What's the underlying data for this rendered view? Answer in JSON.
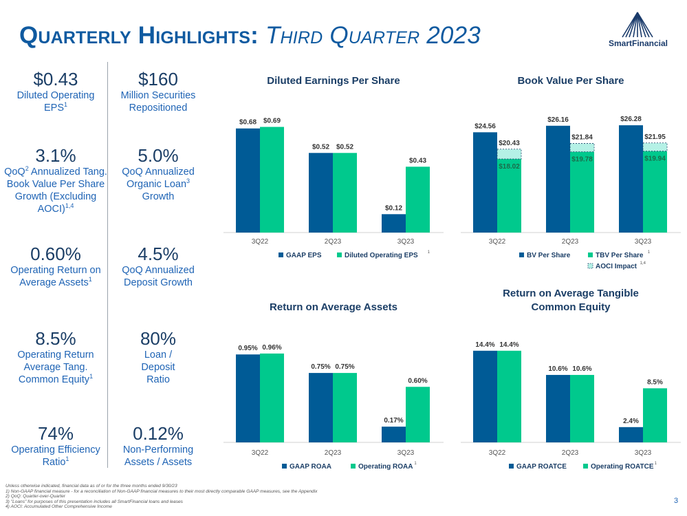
{
  "title": {
    "main": "Quarterly Highlights:",
    "sub": "Third Quarter 2023"
  },
  "logo": {
    "name": "SmartFinancial"
  },
  "kpis_left": [
    {
      "value": "$0.43",
      "label": "Diluted Operating EPS",
      "sup": "1"
    },
    {
      "value": "3.1%",
      "label_parts": [
        "QoQ",
        "2",
        " Annualized Tang. Book Value Per Share Growth (Excluding AOCI)",
        "1,4"
      ]
    },
    {
      "value": "0.60%",
      "label": "Operating Return on Average Assets",
      "sup": "1"
    },
    {
      "value": "8.5%",
      "label": "Operating Return Average Tang. Common Equity",
      "sup": "1"
    },
    {
      "value": "74%",
      "label": "Operating Efficiency Ratio",
      "sup": "1"
    }
  ],
  "kpis_right": [
    {
      "value": "$160",
      "label": "Million Securities Repositioned"
    },
    {
      "value": "5.0%",
      "label": "QoQ Annualized Organic Loan",
      "sup": "3",
      "label_after": " Growth"
    },
    {
      "value": "4.5%",
      "label": "QoQ Annualized Deposit Growth"
    },
    {
      "value": "80%",
      "label": "Loan / Deposit Ratio"
    },
    {
      "value": "0.12%",
      "label": "Non-Performing Assets / Assets"
    }
  ],
  "colors": {
    "navy": "#005b96",
    "green": "#00c98d",
    "aoci": "#b5f1e6",
    "title": "#0f5aa0",
    "kpi_label": "#1f64b5",
    "kpi_value": "#1b3e66"
  },
  "chart_data": [
    {
      "id": "eps",
      "type": "bar",
      "title": "Diluted Earnings Per Share",
      "categories": [
        "3Q22",
        "2Q23",
        "3Q23"
      ],
      "series": [
        {
          "name": "GAAP EPS",
          "values": [
            0.68,
            0.52,
            0.12
          ],
          "labels": [
            "$0.68",
            "$0.52",
            "$0.12"
          ]
        },
        {
          "name": "Diluted Operating EPS",
          "sup": "1",
          "values": [
            0.69,
            0.52,
            0.43
          ],
          "labels": [
            "$0.69",
            "$0.52",
            "$0.43"
          ]
        }
      ],
      "ylim": [
        0,
        0.8
      ]
    },
    {
      "id": "bvps",
      "type": "bar",
      "title": "Book Value Per Share",
      "categories": [
        "3Q22",
        "2Q23",
        "3Q23"
      ],
      "series": [
        {
          "name": "BV Per Share",
          "values": [
            24.56,
            26.16,
            26.28
          ],
          "labels": [
            "$24.56",
            "$26.16",
            "$26.28"
          ]
        },
        {
          "name": "TBV Per Share",
          "sup": "1",
          "values": [
            18.02,
            19.78,
            19.94
          ],
          "labels": [
            "$18.02",
            "$19.78",
            "$19.94"
          ]
        },
        {
          "name": "AOCI Impact",
          "sup": "1,4",
          "stacked_on": "TBV Per Share",
          "values": [
            2.41,
            2.06,
            2.01
          ],
          "labels": [
            "$20.43",
            "$21.84",
            "$21.95"
          ]
        }
      ],
      "ylim": [
        0,
        30
      ]
    },
    {
      "id": "roaa",
      "type": "bar",
      "title": "Return on Average Assets",
      "categories": [
        "3Q22",
        "2Q23",
        "3Q23"
      ],
      "series": [
        {
          "name": "GAAP ROAA",
          "values": [
            0.95,
            0.75,
            0.17
          ],
          "labels": [
            "0.95%",
            "0.75%",
            "0.17%"
          ]
        },
        {
          "name": "Operating ROAA",
          "sup": "1",
          "values": [
            0.96,
            0.75,
            0.6
          ],
          "labels": [
            "0.96%",
            "0.75%",
            "0.60%"
          ]
        }
      ],
      "ylim": [
        0,
        1.1
      ]
    },
    {
      "id": "roatce",
      "type": "bar",
      "title": "Return on Average Tangible Common Equity",
      "title_lines": [
        "Return on Average Tangible",
        "Common Equity"
      ],
      "categories": [
        "3Q22",
        "2Q23",
        "3Q23"
      ],
      "series": [
        {
          "name": "GAAP ROATCE",
          "values": [
            14.4,
            10.6,
            2.4
          ],
          "labels": [
            "14.4%",
            "10.6%",
            "2.4%"
          ]
        },
        {
          "name": "Operating ROATCE",
          "sup": "1",
          "values": [
            14.4,
            10.6,
            8.5
          ],
          "labels": [
            "14.4%",
            "10.6%",
            "8.5%"
          ]
        }
      ],
      "ylim": [
        0,
        16
      ]
    }
  ],
  "footnotes": [
    "Unless otherwise indicated, financial data as of or for the three months ended 9/30/23",
    "1)    Non-GAAP financial measure - for a reconciliation of Non-GAAP financial measures to their most directly comparable GAAP measures, see the Appendix",
    "2)    QoQ: Quarter-over-Quarter",
    "3)    \"Loans\" for purposes of this presentation includes all SmartFinancial loans and leases",
    "4)    AOCI: Accumulated Other Comprehensive Income"
  ],
  "page_number": "3"
}
